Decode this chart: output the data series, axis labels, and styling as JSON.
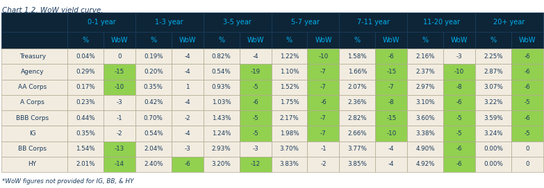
{
  "title": "Chart 1.2. WoW yield curve.",
  "footnote": "*WoW figures not provided for IG, BB, & HY",
  "header_bg": "#0d2537",
  "header_accent_color": "#00b0f0",
  "cell_bg_default": "#f2ece0",
  "cell_bg_green": "#92d050",
  "label_text_color": "#1a3a5c",
  "col_groups": [
    "0-1 year",
    "1-3 year",
    "3-5 year",
    "5-7 year",
    "7-11 year",
    "11-20 year",
    "20+ year"
  ],
  "data": [
    {
      "label": "Treasury",
      "vals": [
        "0.04%",
        "0.19%",
        "0.82%",
        "1.22%",
        "1.58%",
        "2.16%",
        "2.25%"
      ],
      "wow": [
        0,
        -4,
        -4,
        -10,
        -6,
        -3,
        -6
      ]
    },
    {
      "label": "Agency",
      "vals": [
        "0.29%",
        "0.20%",
        "0.54%",
        "1.10%",
        "1.66%",
        "2.37%",
        "2.87%"
      ],
      "wow": [
        -15,
        -4,
        -19,
        -7,
        -15,
        -10,
        -6
      ]
    },
    {
      "label": "AA Corps",
      "vals": [
        "0.17%",
        "0.35%",
        "0.93%",
        "1.52%",
        "2.07%",
        "2.97%",
        "3.07%"
      ],
      "wow": [
        -10,
        1,
        -5,
        -7,
        -7,
        -8,
        -6
      ]
    },
    {
      "label": "A Corps",
      "vals": [
        "0.23%",
        "0.42%",
        "1.03%",
        "1.75%",
        "2.36%",
        "3.10%",
        "3.22%"
      ],
      "wow": [
        -3,
        -4,
        -6,
        -6,
        -8,
        -6,
        -5
      ]
    },
    {
      "label": "BBB Corps",
      "vals": [
        "0.44%",
        "0.70%",
        "1.43%",
        "2.17%",
        "2.82%",
        "3.60%",
        "3.59%"
      ],
      "wow": [
        -1,
        -2,
        -5,
        -7,
        -15,
        -5,
        -6
      ]
    },
    {
      "label": "IG",
      "vals": [
        "0.35%",
        "0.54%",
        "1.24%",
        "1.98%",
        "2.66%",
        "3.38%",
        "3.24%"
      ],
      "wow": [
        -2,
        -4,
        -5,
        -7,
        -10,
        -5,
        -5
      ]
    },
    {
      "label": "BB Corps",
      "vals": [
        "1.54%",
        "2.04%",
        "2.93%",
        "3.70%",
        "3.77%",
        "4.90%",
        "0.00%"
      ],
      "wow": [
        -13,
        -3,
        -3,
        -1,
        -4,
        -6,
        0
      ]
    },
    {
      "label": "HY",
      "vals": [
        "2.01%",
        "2.40%",
        "3.20%",
        "3.83%",
        "3.85%",
        "4.92%",
        "0.00%"
      ],
      "wow": [
        -14,
        -6,
        -12,
        -2,
        -4,
        -6,
        0
      ]
    }
  ],
  "fig_width": 7.83,
  "fig_height": 2.71,
  "dpi": 100
}
